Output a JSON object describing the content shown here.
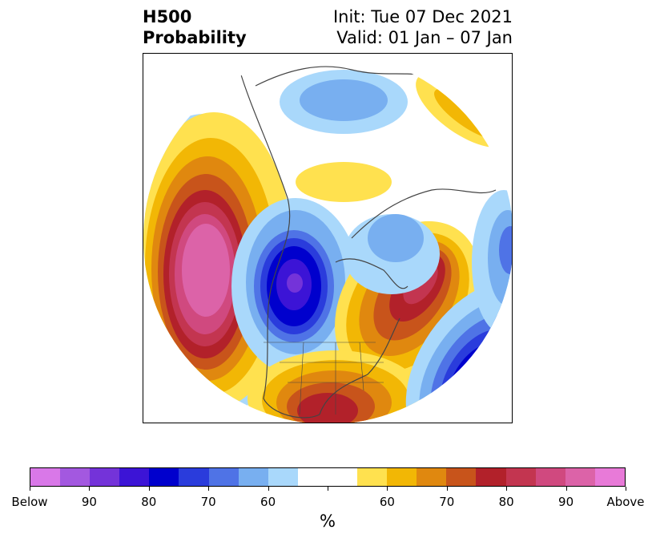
{
  "title": {
    "left_line1": "H500",
    "left_line2": "Probability",
    "right_line1": "Init: Tue 07 Dec 2021",
    "right_line2": "Valid: 01 Jan – 07 Jan"
  },
  "map": {
    "projection": "north-polar-stereographic",
    "features": [
      {
        "name": "Positive anomaly over Gulf of Alaska / NE Pacific",
        "category": "above",
        "max_level": ">90"
      },
      {
        "name": "Negative anomaly over western Canada",
        "category": "below",
        "max_level": "90"
      },
      {
        "name": "Positive anomaly over North Atlantic",
        "category": "above",
        "max_level": "80"
      },
      {
        "name": "Positive anomaly over southeastern US",
        "category": "above",
        "max_level": "80"
      },
      {
        "name": "Negative anomaly over central Atlantic",
        "category": "below",
        "max_level": "80"
      },
      {
        "name": "Negative anomaly over northern Siberia",
        "category": "below",
        "max_level": "60"
      }
    ]
  },
  "colorbar": {
    "colors": [
      "#d978e8",
      "#a358e0",
      "#7433d9",
      "#3c14d6",
      "#0000cd",
      "#2a3cdc",
      "#4f73e6",
      "#78aff0",
      "#a9d8fb",
      "#ffffff",
      "#ffffff",
      "#ffe14f",
      "#f2b705",
      "#e0880f",
      "#c8541b",
      "#b2212a",
      "#c33550",
      "#d0497f",
      "#dc63a8",
      "#e87ad8"
    ],
    "tick_labels": [
      "Below",
      "90",
      "80",
      "70",
      "60",
      "",
      "60",
      "70",
      "80",
      "90",
      "Above"
    ],
    "unit_label": "%"
  }
}
